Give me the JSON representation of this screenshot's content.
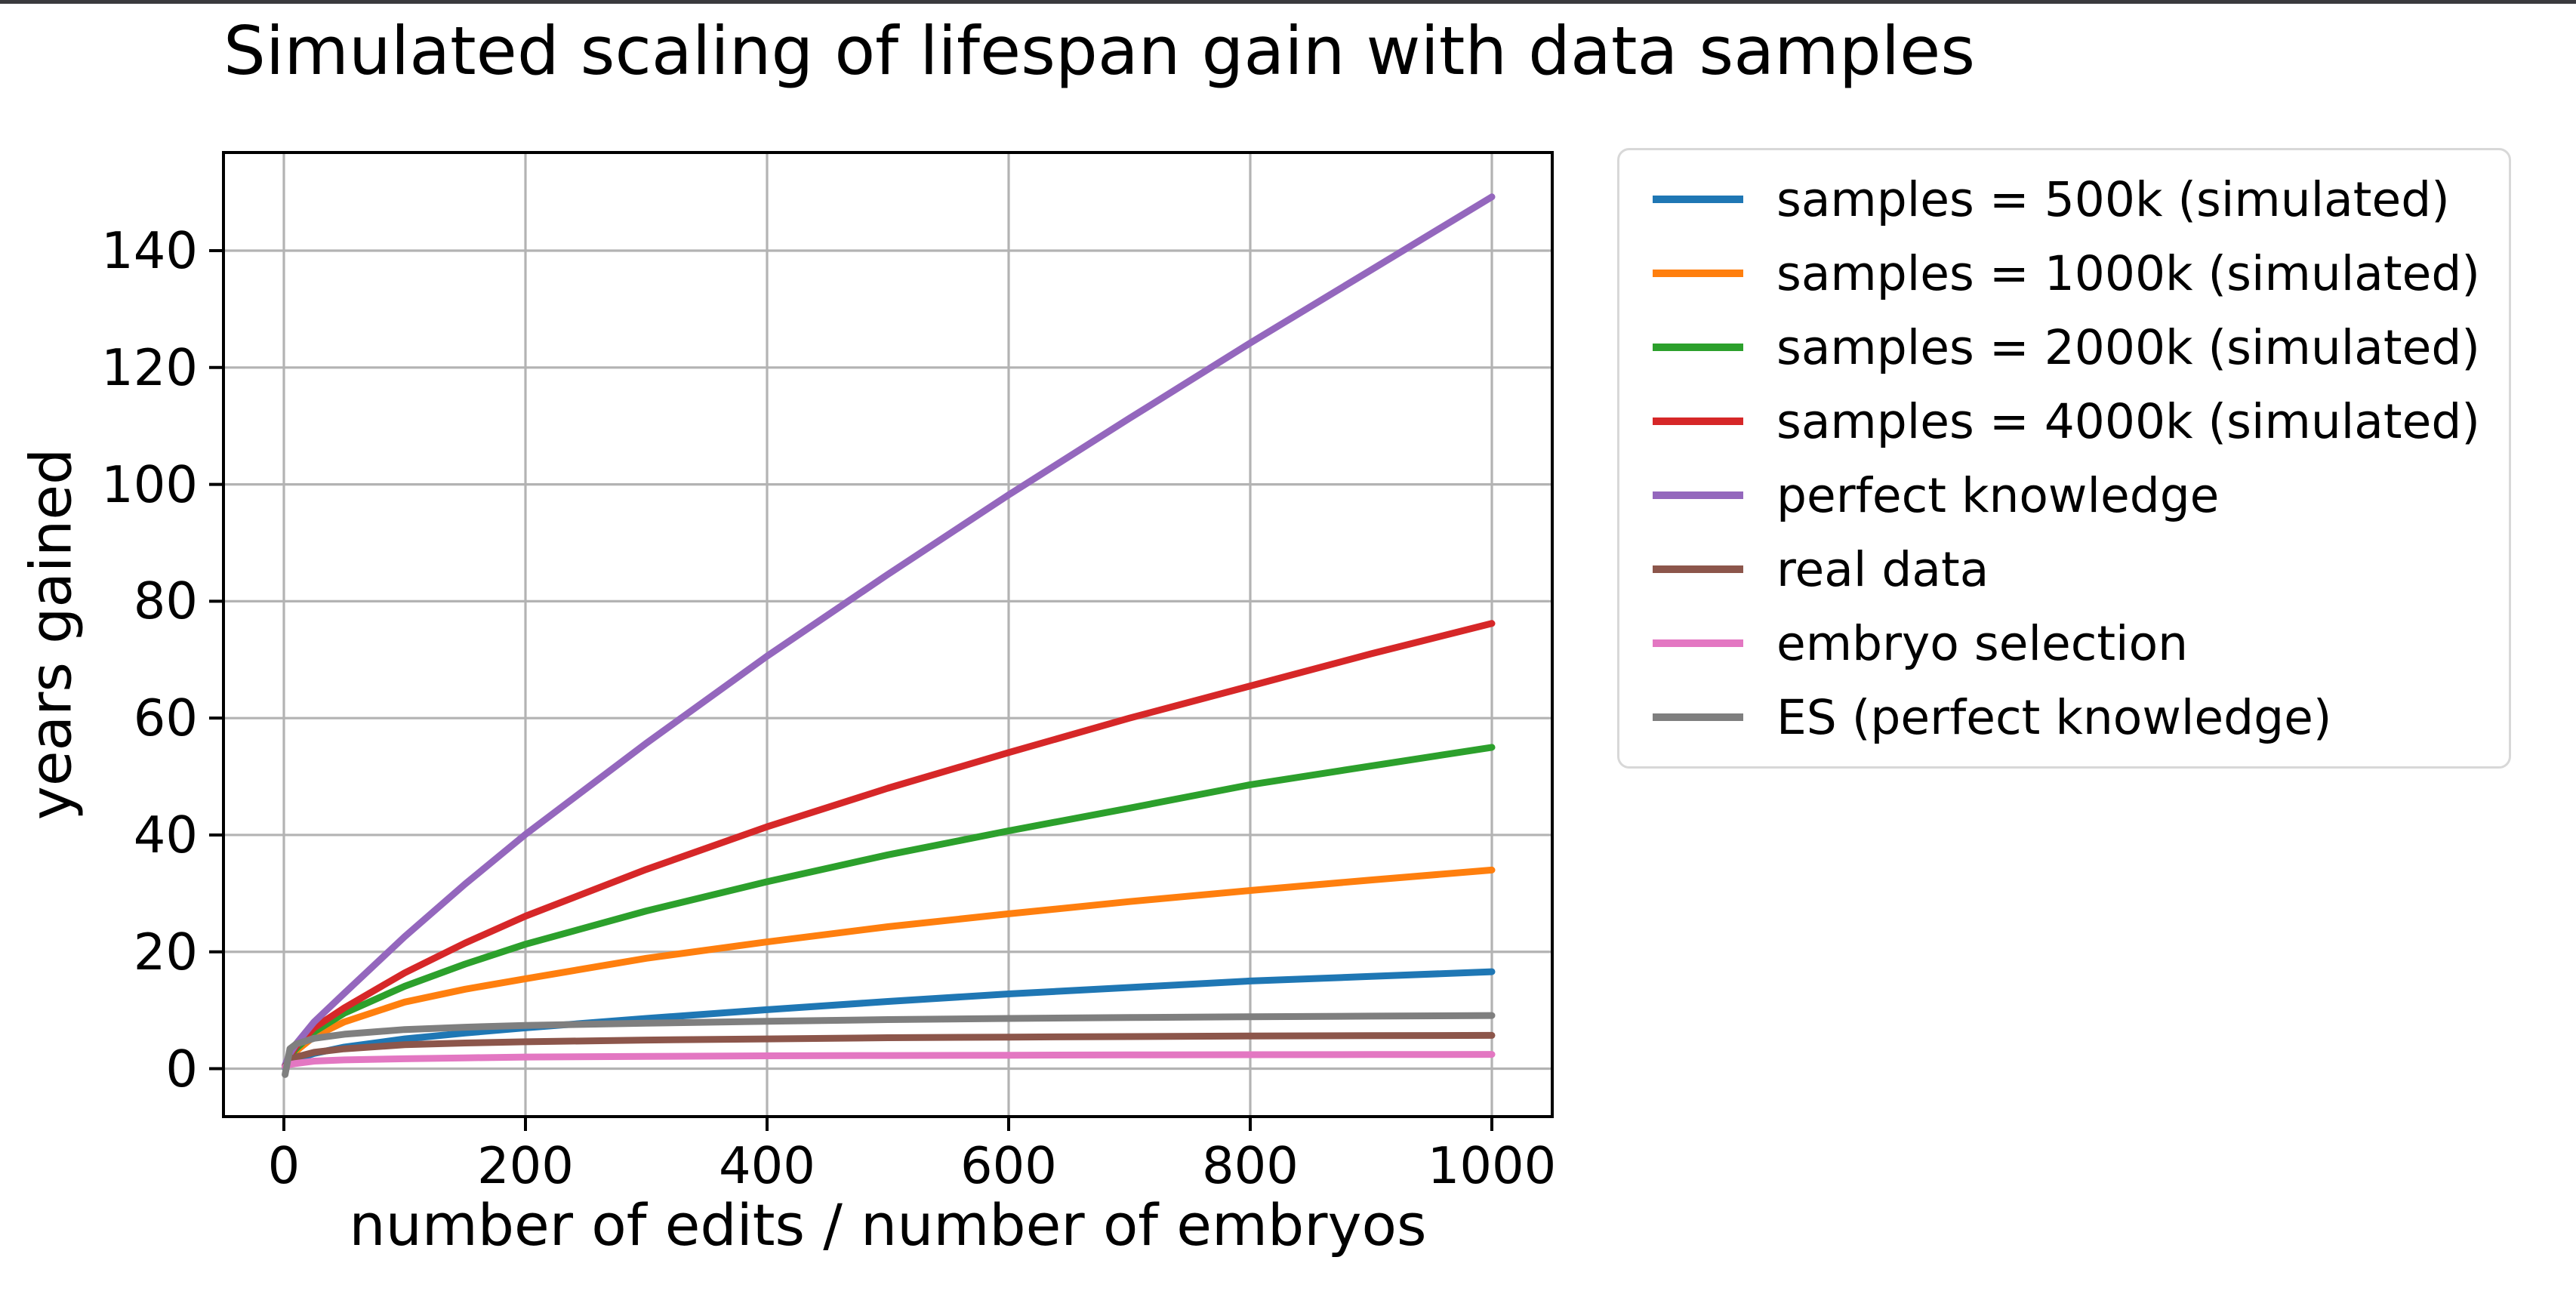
{
  "window": {
    "top_strip_color": "#3a3a3e",
    "background": "#ffffff"
  },
  "chart_data": {
    "type": "line",
    "title": "Simulated scaling of lifespan gain with data samples",
    "xlabel": "number of edits / number of embryos",
    "ylabel": "years gained",
    "xlim": [
      -50,
      1050
    ],
    "ylim": [
      -8.2,
      156.8
    ],
    "xticks": [
      0,
      200,
      400,
      600,
      800,
      1000
    ],
    "yticks": [
      0,
      20,
      40,
      60,
      80,
      100,
      120,
      140
    ],
    "grid": true,
    "grid_color": "#b3b3b3",
    "spine_color": "#000000",
    "legend_position": "upper-right-outside",
    "legend_border_color": "#d8d8d8",
    "x": [
      1,
      5,
      10,
      25,
      50,
      100,
      150,
      200,
      300,
      400,
      500,
      600,
      700,
      800,
      900,
      1000
    ],
    "series": [
      {
        "name": "samples = 500k (simulated)",
        "color": "#1f77b4",
        "values": [
          0.2,
          1.1,
          1.6,
          2.6,
          3.7,
          5.1,
          6.1,
          7.0,
          8.6,
          10.1,
          11.5,
          12.8,
          13.9,
          15.0,
          15.8,
          16.6
        ]
      },
      {
        "name": "samples = 1000k (simulated)",
        "color": "#ff7f0e",
        "values": [
          0.4,
          1.9,
          3.0,
          5.5,
          8.0,
          11.4,
          13.6,
          15.4,
          18.9,
          21.7,
          24.3,
          26.5,
          28.6,
          30.5,
          32.3,
          34.0
        ]
      },
      {
        "name": "samples = 2000k (simulated)",
        "color": "#2ca02c",
        "values": [
          0.5,
          2.2,
          3.4,
          6.3,
          9.5,
          14.1,
          17.9,
          21.3,
          27.0,
          32.0,
          36.6,
          40.7,
          44.6,
          48.6,
          51.8,
          55.0
        ]
      },
      {
        "name": "samples = 4000k (simulated)",
        "color": "#d62728",
        "values": [
          0.5,
          2.4,
          3.8,
          7.0,
          10.4,
          16.4,
          21.5,
          26.1,
          34.1,
          41.4,
          48.0,
          54.1,
          60.0,
          65.5,
          71.0,
          76.2
        ]
      },
      {
        "name": "perfect knowledge",
        "color": "#9467bd",
        "values": [
          0.6,
          2.6,
          4.2,
          8.0,
          12.9,
          22.6,
          31.6,
          40.1,
          55.7,
          70.6,
          84.6,
          98.2,
          111.3,
          124.2,
          136.7,
          149.2
        ]
      },
      {
        "name": "real data",
        "color": "#8c564b",
        "values": [
          0.4,
          1.5,
          2.0,
          2.8,
          3.4,
          4.1,
          4.4,
          4.6,
          4.9,
          5.1,
          5.3,
          5.4,
          5.5,
          5.6,
          5.65,
          5.7
        ]
      },
      {
        "name": "embryo selection",
        "color": "#e377c2",
        "values": [
          0.3,
          0.7,
          0.9,
          1.3,
          1.5,
          1.7,
          1.85,
          2.0,
          2.1,
          2.2,
          2.25,
          2.3,
          2.35,
          2.4,
          2.42,
          2.45
        ]
      },
      {
        "name": "ES (perfect knowledge)",
        "color": "#7f7f7f",
        "values": [
          -1.0,
          3.4,
          4.2,
          5.2,
          5.9,
          6.7,
          7.1,
          7.4,
          7.8,
          8.1,
          8.4,
          8.6,
          8.75,
          8.9,
          9.0,
          9.1
        ]
      }
    ]
  }
}
